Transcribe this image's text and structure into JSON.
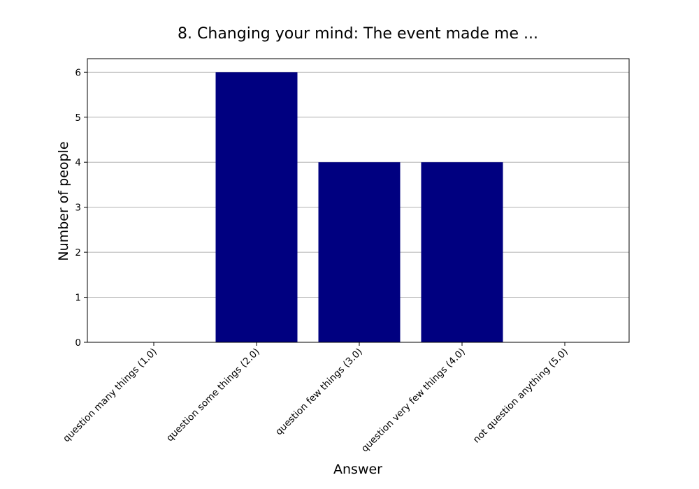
{
  "chart_data": {
    "type": "bar",
    "title": "8. Changing your mind: The event made me ...",
    "xlabel": "Answer",
    "ylabel": "Number of people",
    "categories": [
      "question many things (1.0)",
      "question some things (2.0)",
      "question few things (3.0)",
      "question very few things (4.0)",
      "not question anything (5.0)"
    ],
    "values": [
      0,
      6,
      4,
      4,
      0
    ],
    "ylim": [
      0,
      6.3
    ],
    "yticks": [
      0,
      1,
      2,
      3,
      4,
      5,
      6
    ],
    "grid": true,
    "grid_axis": "y",
    "bar_color": "#000080",
    "legend": "none"
  }
}
